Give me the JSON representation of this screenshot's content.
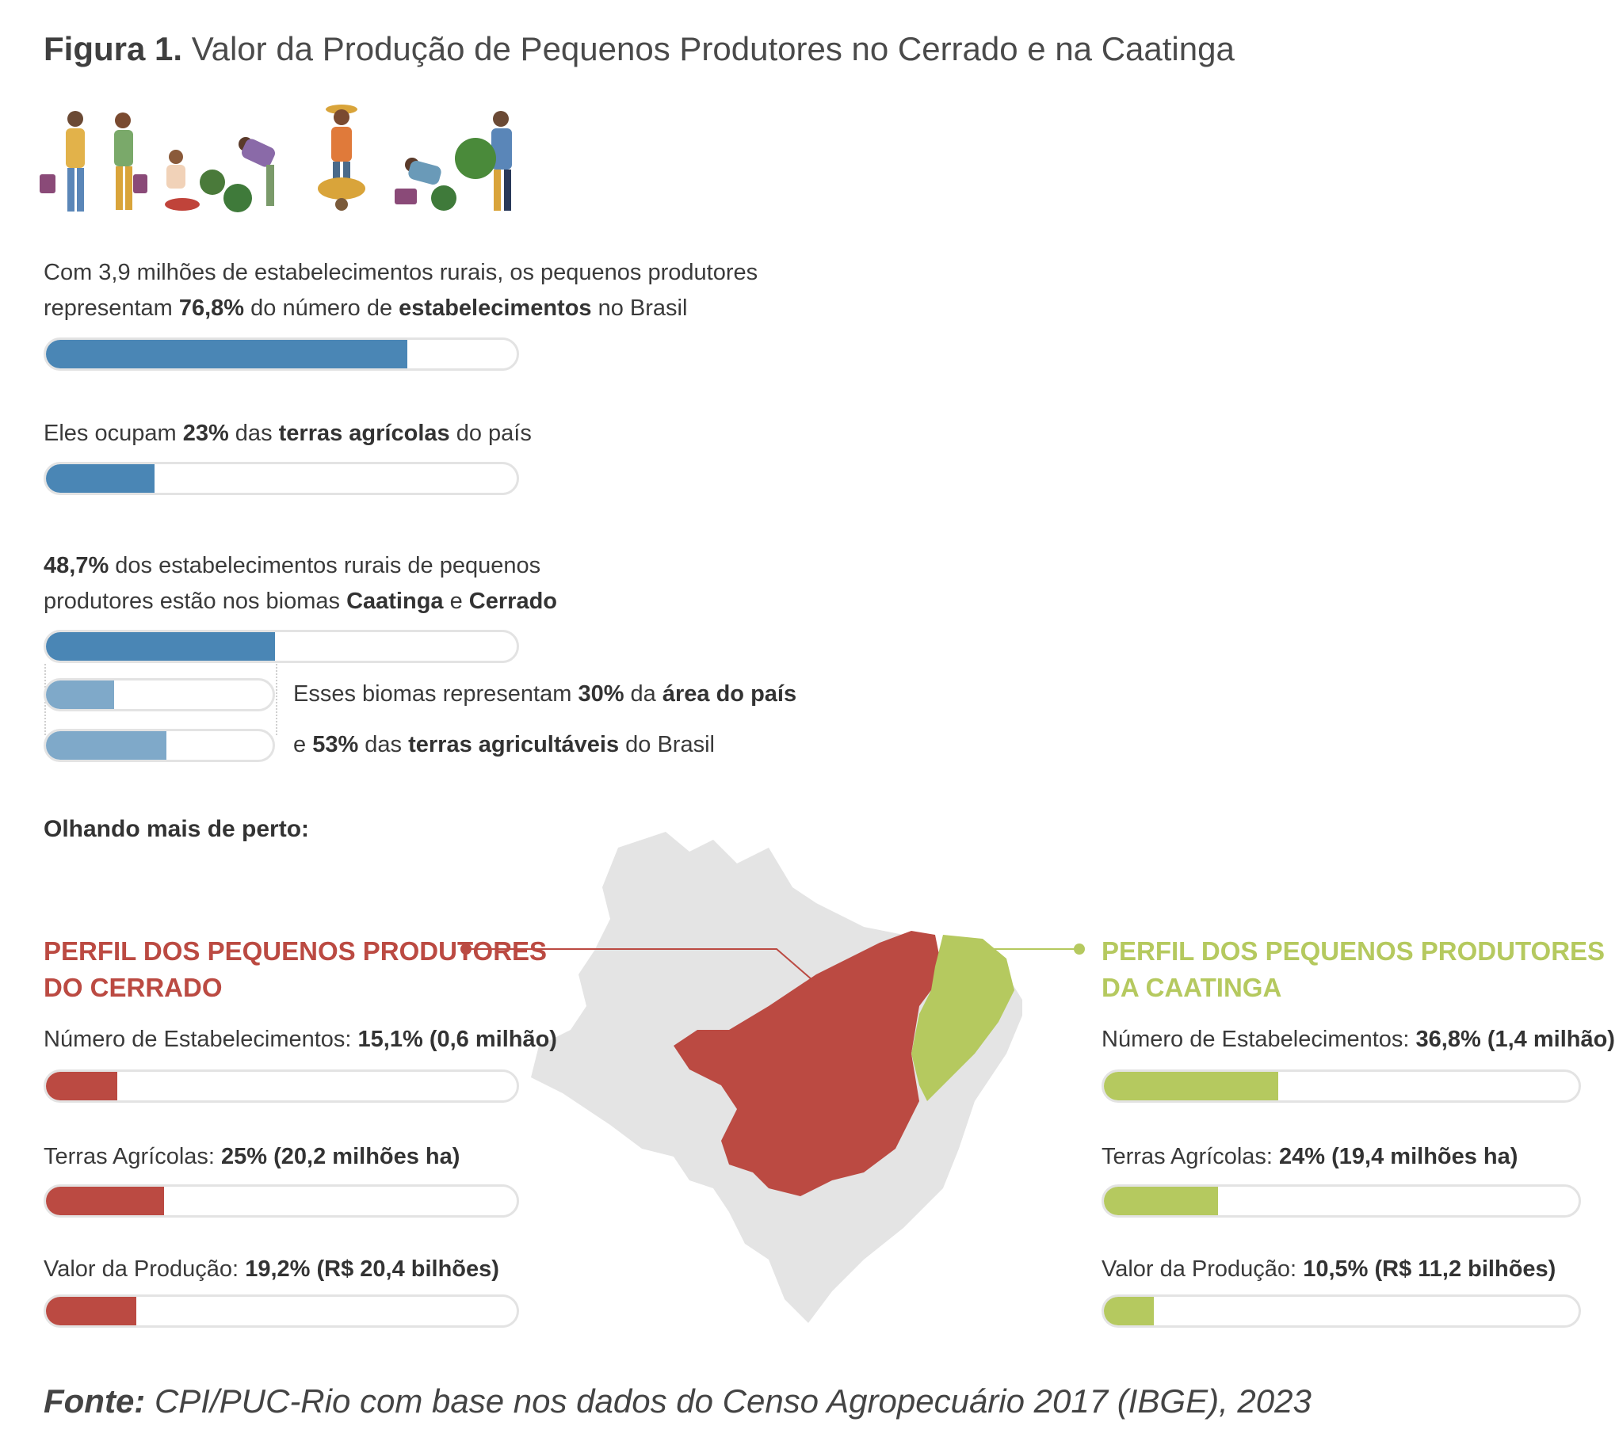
{
  "title": {
    "label": "Figura 1.",
    "text": "Valor da Produção de Pequenos Produtores no Cerrado e na Caatinga"
  },
  "colors": {
    "blue": "#4a86b5",
    "light_blue": "#7fa9c9",
    "red": "#bb4a42",
    "green": "#b5c95f",
    "track": "#e3e3e3",
    "map_gray": "#e4e4e4"
  },
  "icons": [
    "farmers-illustration",
    "brazil-map"
  ],
  "stat1": {
    "line1": "Com 3,9 milhões de estabelecimentos rurais, os pequenos produtores",
    "line2_a": "representam ",
    "line2_b": "76,8%",
    "line2_c": " do número de ",
    "line2_d": "estabelecimentos",
    "line2_e": " no Brasil",
    "value": 76.8
  },
  "stat2": {
    "a": "Eles ocupam ",
    "b": "23%",
    "c": " das ",
    "d": "terras agrícolas",
    "e": " do país",
    "value": 23
  },
  "stat3": {
    "line1_a": "48,7%",
    "line1_b": " dos estabelecimentos rurais de pequenos",
    "line2_a": "produtores estão nos biomas ",
    "line2_b": "Caatinga",
    "line2_c": " e ",
    "line2_d": "Cerrado",
    "value": 48.7
  },
  "stat4": {
    "a": "Esses biomas representam ",
    "b": "30%",
    "c": " da ",
    "d": "área do país",
    "value": 30
  },
  "stat5": {
    "a": "e ",
    "b": "53%",
    "c": " das ",
    "d": "terras agricultáveis",
    "e": " do Brasil",
    "value": 53
  },
  "olhando": "Olhando mais de perto:",
  "cerrado": {
    "head1": "PERFIL DOS PEQUENOS PRODUTORES",
    "head2": "DO CERRADO",
    "rows": [
      {
        "label": "Número de Estabelecimentos: ",
        "value_text": "15,1% (0,6 milhão)",
        "value": 15.1
      },
      {
        "label": "Terras Agrícolas: ",
        "value_text": "25% (20,2 milhões ha)",
        "value": 25
      },
      {
        "label": "Valor da Produção: ",
        "value_text": "19,2% (R$ 20,4 bilhões)",
        "value": 19.2
      }
    ]
  },
  "caatinga": {
    "head1": "PERFIL DOS PEQUENOS PRODUTORES",
    "head2": "DA CAATINGA",
    "rows": [
      {
        "label": "Número de Estabelecimentos: ",
        "value_text": "36,8% (1,4 milhão)",
        "value": 36.8
      },
      {
        "label": "Terras Agrícolas: ",
        "value_text": "24% (19,4 milhões ha)",
        "value": 24
      },
      {
        "label": "Valor da Produção: ",
        "value_text": "10,5% (R$ 11,2 bilhões)",
        "value": 10.5
      }
    ]
  },
  "fonte": {
    "label": "Fonte:",
    "text": " CPI/PUC-Rio com base nos dados do Censo Agropecuário 2017 (IBGE), 2023"
  },
  "chart_data": {
    "type": "bar",
    "categories": [
      "Estabelecimentos (pequenos produtores, Brasil)",
      "Terras agrícolas (pequenos produtores, Brasil)",
      "Estabelecimentos nos biomas Caatinga e Cerrado",
      "Área do país (biomas)",
      "Terras agricultáveis (biomas)",
      "Cerrado: Número de Estabelecimentos",
      "Cerrado: Terras Agrícolas",
      "Cerrado: Valor da Produção",
      "Caatinga: Número de Estabelecimentos",
      "Caatinga: Terras Agrícolas",
      "Caatinga: Valor da Produção"
    ],
    "values": [
      76.8,
      23,
      48.7,
      30,
      53,
      15.1,
      25,
      19.2,
      36.8,
      24,
      10.5
    ],
    "unit": "%",
    "xlim": [
      0,
      100
    ]
  }
}
